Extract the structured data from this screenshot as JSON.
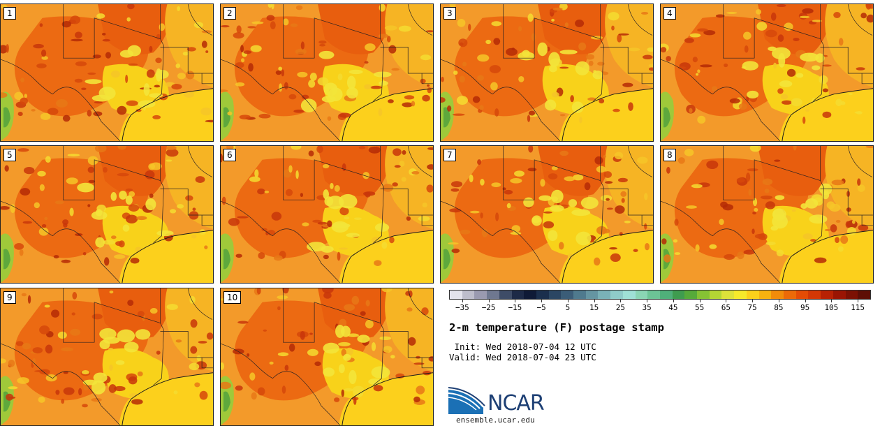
{
  "panels": [
    {
      "label": "1"
    },
    {
      "label": "2"
    },
    {
      "label": "3"
    },
    {
      "label": "4"
    },
    {
      "label": "5"
    },
    {
      "label": "6"
    },
    {
      "label": "7"
    },
    {
      "label": "8"
    },
    {
      "label": "9"
    },
    {
      "label": "10"
    }
  ],
  "colorbar": {
    "colors": [
      "#e3e3ec",
      "#bdbdcb",
      "#9a9ab0",
      "#6f7890",
      "#3e4c67",
      "#1d2a47",
      "#0f1a36",
      "#1b2f4d",
      "#2b4663",
      "#3b5d78",
      "#4f7a8e",
      "#6595a2",
      "#7ab1b7",
      "#8fcbc9",
      "#9fe0d6",
      "#8ad5b4",
      "#6cc496",
      "#4fb07a",
      "#3f9c4f",
      "#56aa3a",
      "#86c234",
      "#b4d634",
      "#dde23a",
      "#f6ea2b",
      "#fbd01b",
      "#f7b20f",
      "#f28c0a",
      "#ec6a08",
      "#e44c05",
      "#d33805",
      "#b82204",
      "#9a1503",
      "#7c1103",
      "#5e0e05"
    ],
    "tick_labels": [
      "-35",
      "-25",
      "-15",
      "-5",
      "5",
      "15",
      "25",
      "35",
      "45",
      "55",
      "65",
      "75",
      "85",
      "95",
      "105",
      "115"
    ],
    "range": [
      -40,
      120
    ]
  },
  "title": "2-m temperature (F) postage stamp",
  "init": " Init: Wed 2018-07-04 12 UTC",
  "valid": "Valid: Wed 2018-07-04 23 UTC",
  "logo": {
    "text": "NCAR",
    "url_text": "ensemble.ucar.edu"
  }
}
